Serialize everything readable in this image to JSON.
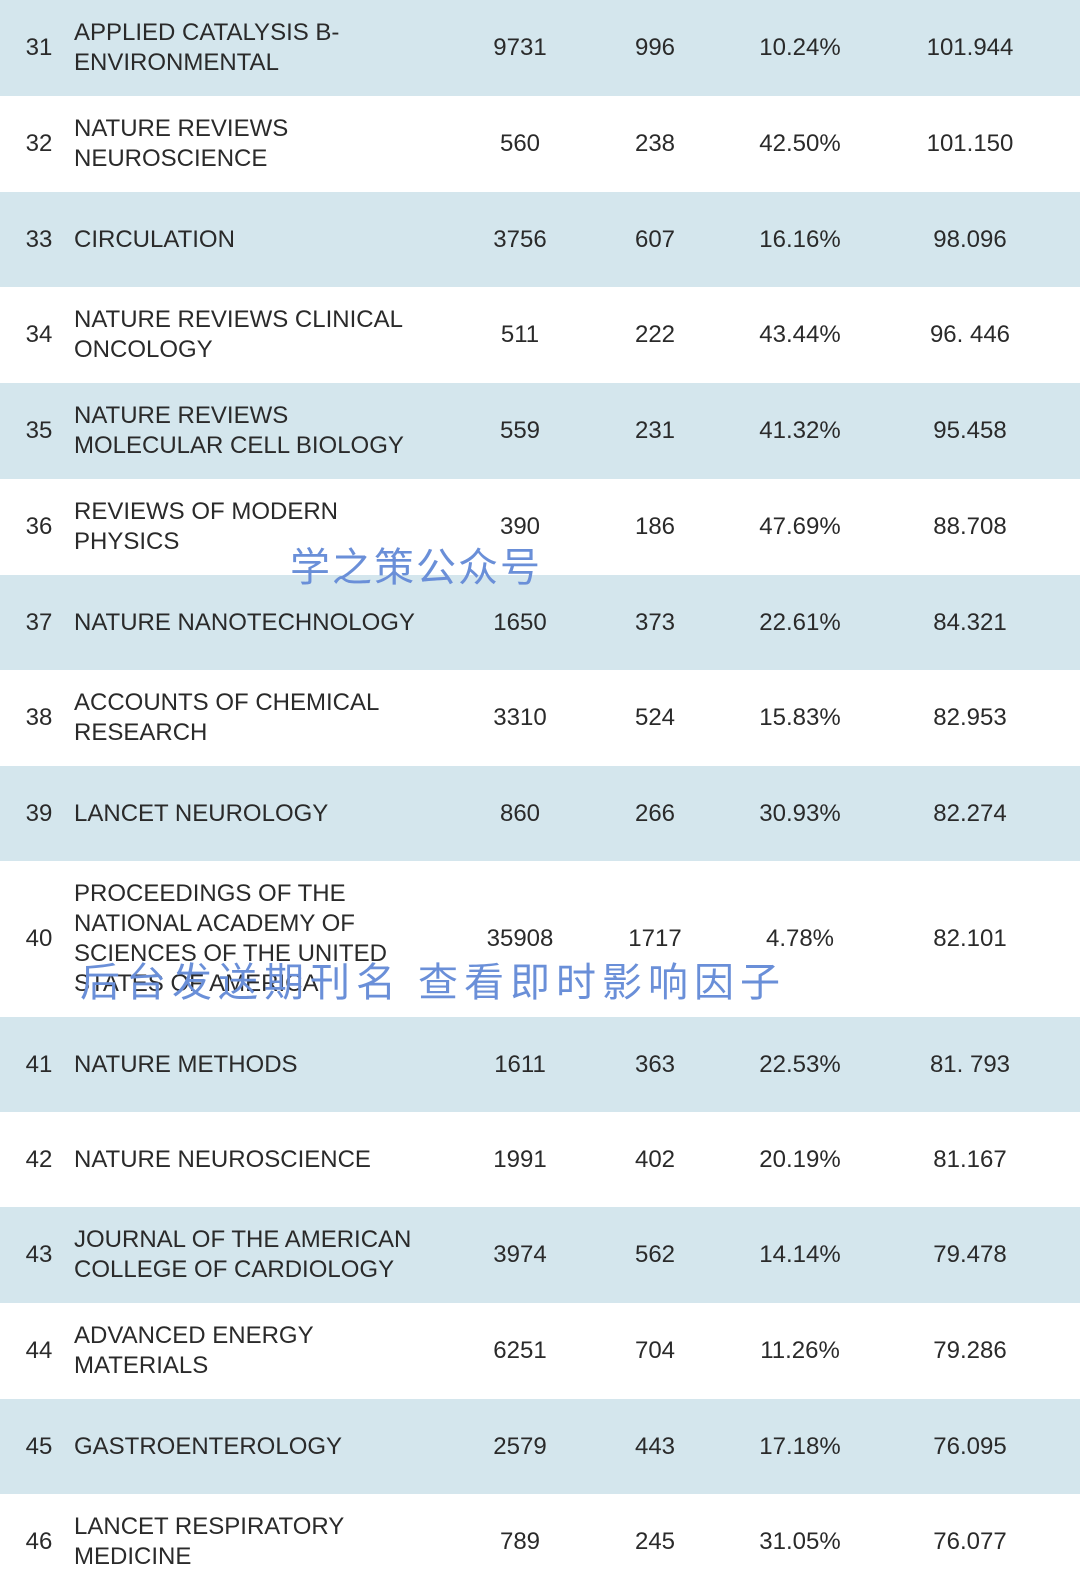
{
  "table": {
    "row_bg_odd": "#d4e6ed",
    "row_bg_even": "#ffffff",
    "text_color": "#2a2a2a",
    "font_size": 24,
    "columns": [
      "rank",
      "name",
      "value1",
      "value2",
      "percent",
      "score"
    ],
    "rows": [
      {
        "rank": "31",
        "name": "APPLIED CATALYSIS B-ENVIRONMENTAL",
        "v1": "9731",
        "v2": "996",
        "pct": "10.24%",
        "score": "101.944"
      },
      {
        "rank": "32",
        "name": "NATURE REVIEWS NEUROSCIENCE",
        "v1": "560",
        "v2": "238",
        "pct": "42.50%",
        "score": "101.150"
      },
      {
        "rank": "33",
        "name": "CIRCULATION",
        "v1": "3756",
        "v2": "607",
        "pct": "16.16%",
        "score": "98.096"
      },
      {
        "rank": "34",
        "name": "NATURE REVIEWS CLINICAL ONCOLOGY",
        "v1": "511",
        "v2": "222",
        "pct": "43.44%",
        "score": "96. 446"
      },
      {
        "rank": "35",
        "name": "NATURE REVIEWS MOLECULAR CELL BIOLOGY",
        "v1": "559",
        "v2": "231",
        "pct": "41.32%",
        "score": "95.458"
      },
      {
        "rank": "36",
        "name": "REVIEWS OF MODERN PHYSICS",
        "v1": "390",
        "v2": "186",
        "pct": "47.69%",
        "score": "88.708"
      },
      {
        "rank": "37",
        "name": "NATURE NANOTECHNOLOGY",
        "v1": "1650",
        "v2": "373",
        "pct": "22.61%",
        "score": "84.321"
      },
      {
        "rank": "38",
        "name": "ACCOUNTS OF CHEMICAL RESEARCH",
        "v1": "3310",
        "v2": "524",
        "pct": "15.83%",
        "score": "82.953"
      },
      {
        "rank": "39",
        "name": "LANCET NEUROLOGY",
        "v1": "860",
        "v2": "266",
        "pct": "30.93%",
        "score": "82.274"
      },
      {
        "rank": "40",
        "name": "PROCEEDINGS OF THE NATIONAL ACADEMY OF SCIENCES OF THE UNITED STATES OF AMERICA",
        "v1": "35908",
        "v2": "1717",
        "pct": "4.78%",
        "score": "82.101"
      },
      {
        "rank": "41",
        "name": "NATURE METHODS",
        "v1": "1611",
        "v2": "363",
        "pct": "22.53%",
        "score": "81. 793"
      },
      {
        "rank": "42",
        "name": "NATURE NEUROSCIENCE",
        "v1": "1991",
        "v2": "402",
        "pct": "20.19%",
        "score": "81.167"
      },
      {
        "rank": "43",
        "name": "JOURNAL OF THE AMERICAN COLLEGE OF CARDIOLOGY",
        "v1": "3974",
        "v2": "562",
        "pct": "14.14%",
        "score": "79.478"
      },
      {
        "rank": "44",
        "name": "ADVANCED ENERGY MATERIALS",
        "v1": "6251",
        "v2": "704",
        "pct": "11.26%",
        "score": "79.286"
      },
      {
        "rank": "45",
        "name": "GASTROENTEROLOGY",
        "v1": "2579",
        "v2": "443",
        "pct": "17.18%",
        "score": "76.095"
      },
      {
        "rank": "46",
        "name": "LANCET RESPIRATORY MEDICINE",
        "v1": "789",
        "v2": "245",
        "pct": "31.05%",
        "score": "76.077"
      }
    ]
  },
  "watermarks": {
    "wm1": "学之策公众号",
    "wm2": "后台发送期刊名 查看即时影响因子",
    "color": "#6a8fd8",
    "font_size": 40
  }
}
